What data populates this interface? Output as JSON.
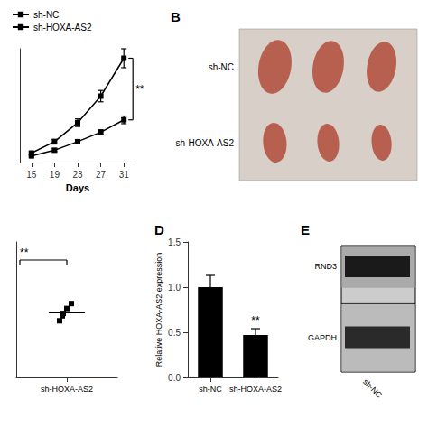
{
  "chart_data": [
    {
      "type": "line",
      "xlabel": "Days",
      "x": [
        15,
        19,
        23,
        27,
        31
      ],
      "series": [
        {
          "name": "sh-NC",
          "color": "#000000",
          "marker": "square",
          "values": [
            0.1,
            0.22,
            0.42,
            0.7,
            1.1
          ],
          "errors": [
            0.015,
            0.025,
            0.04,
            0.06,
            0.1
          ]
        },
        {
          "name": "sh-HOXA-AS2",
          "color": "#000000",
          "marker": "square",
          "values": [
            0.07,
            0.13,
            0.22,
            0.32,
            0.45
          ],
          "errors": [
            0.01,
            0.015,
            0.02,
            0.025,
            0.04
          ]
        }
      ],
      "xlim": [
        13,
        33
      ],
      "xticks": [
        15,
        19,
        23,
        27,
        31
      ],
      "ylim": [
        0,
        1.2
      ],
      "tick_labels": "x",
      "grid": false,
      "legend": "upper left",
      "annotations": [
        "**"
      ]
    },
    {
      "type": "photo",
      "title": "B",
      "categories": [
        "sh-NC",
        "sh-HOXA-AS2"
      ],
      "color": "#b86050"
    },
    {
      "type": "scatter",
      "categories": [
        "sh-HOXA-AS2"
      ],
      "values": [
        [
          0.63,
          0.66,
          0.68,
          0.7,
          0.65
        ]
      ],
      "mean": [
        0.664
      ],
      "color": "#000000",
      "marker": "square",
      "ylim": [
        0.4,
        0.95
      ],
      "tick_labels": "x",
      "grid": false,
      "annotations": [
        "**"
      ]
    },
    {
      "type": "bar",
      "title": "D",
      "categories": [
        "sh-NC",
        "sh-HOXA-AS2"
      ],
      "values": [
        1.0,
        0.47
      ],
      "errors": [
        0.13,
        0.07
      ],
      "color": "#000000",
      "ylabel": "Relative HOXA-AS2 expression",
      "ylim": [
        0.0,
        1.5
      ],
      "yticks": [
        {
          "value": 0.0,
          "label": "0.0"
        },
        {
          "value": 0.5,
          "label": "0.5"
        },
        {
          "value": 1.0,
          "label": "1.0"
        },
        {
          "value": 1.5,
          "label": "1.5"
        }
      ],
      "grid": false,
      "annotations": [
        "**"
      ]
    },
    {
      "type": "blot",
      "title": "E",
      "categories": [
        "RND3",
        "GAPDH"
      ],
      "xlabel": "sh-NC"
    }
  ]
}
